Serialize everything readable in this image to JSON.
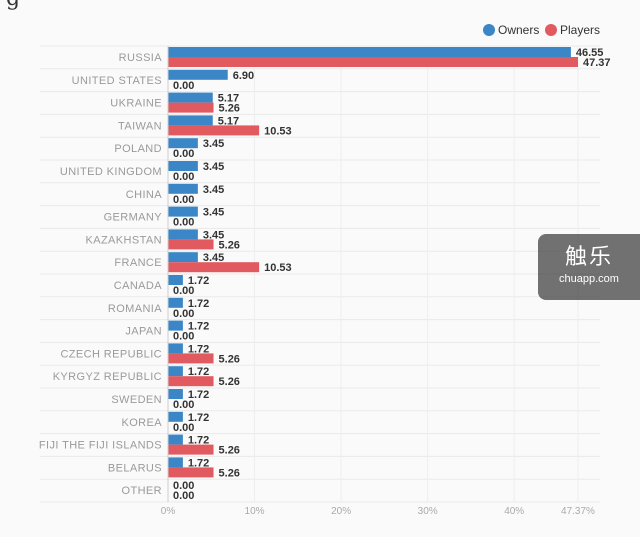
{
  "fragment": "g",
  "watermark": {
    "title": "触乐",
    "url": "chuapp.com"
  },
  "colors": {
    "owners": "#3a86c6",
    "players": "#e05a60"
  },
  "chart_data": {
    "type": "bar",
    "orientation": "horizontal",
    "title": "",
    "xlabel": "",
    "ylabel": "",
    "xlim": [
      0,
      47.37
    ],
    "grid": true,
    "legend": "top-right",
    "categories": [
      "RUSSIA",
      "UNITED STATES",
      "UKRAINE",
      "TAIWAN",
      "POLAND",
      "UNITED KINGDOM",
      "CHINA",
      "GERMANY",
      "KAZAKHSTAN",
      "FRANCE",
      "CANADA",
      "ROMANIA",
      "JAPAN",
      "CZECH REPUBLIC",
      "KYRGYZ REPUBLIC",
      "SWEDEN",
      "KOREA",
      "FIJI THE FIJI ISLANDS",
      "BELARUS",
      "OTHER"
    ],
    "series": [
      {
        "name": "Owners",
        "values": [
          46.55,
          6.9,
          5.17,
          5.17,
          3.45,
          3.45,
          3.45,
          3.45,
          3.45,
          3.45,
          1.72,
          1.72,
          1.72,
          1.72,
          1.72,
          1.72,
          1.72,
          1.72,
          1.72,
          0.0
        ]
      },
      {
        "name": "Players",
        "values": [
          47.37,
          0.0,
          5.26,
          10.53,
          0.0,
          0.0,
          0.0,
          0.0,
          5.26,
          10.53,
          0.0,
          0.0,
          0.0,
          5.26,
          5.26,
          0.0,
          0.0,
          5.26,
          5.26,
          0.0
        ]
      }
    ],
    "value_labels": {
      "Owners": [
        "46.55",
        "6.90",
        "5.17",
        "5.17",
        "3.45",
        "3.45",
        "3.45",
        "3.45",
        "3.45",
        "3.45",
        "1.72",
        "1.72",
        "1.72",
        "1.72",
        "1.72",
        "1.72",
        "1.72",
        "1.72",
        "1.72",
        "0.00"
      ],
      "Players": [
        "47.37",
        "0.00",
        "5.26",
        "10.53",
        "0.00",
        "0.00",
        "0.00",
        "0.00",
        "5.26",
        "10.53",
        "0.00",
        "0.00",
        "0.00",
        "5.26",
        "5.26",
        "0.00",
        "0.00",
        "5.26",
        "5.26",
        "0.00"
      ]
    },
    "ticks": [
      0,
      10,
      20,
      30,
      40,
      47.37
    ],
    "tick_labels": [
      "0%",
      "10%",
      "20%",
      "30%",
      "40%",
      "47.37%"
    ]
  }
}
